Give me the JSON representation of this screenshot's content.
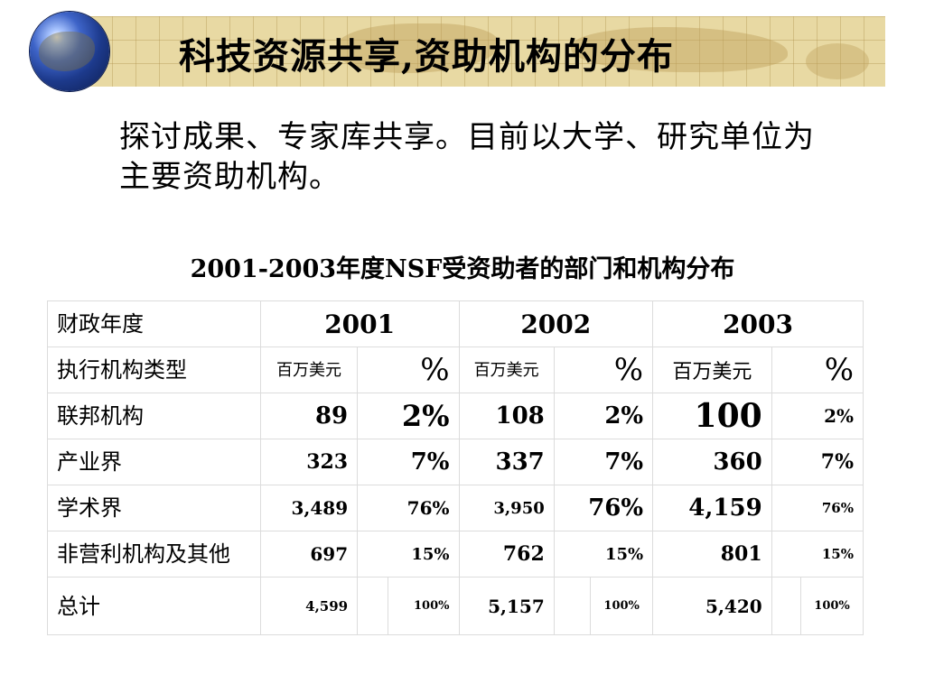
{
  "slide": {
    "title": "科技资源共享,资助机构的分布",
    "body": "探讨成果、专家库共享。目前以大学、研究单位为主要资助机构。",
    "table_title": "2001-2003年度NSF受资助者的部门和机构分布"
  },
  "table": {
    "header_row1": {
      "label": "财政年度",
      "years": [
        "2001",
        "2002",
        "2003"
      ]
    },
    "header_row2": {
      "label": "执行机构类型",
      "unit_amount": "百万美元",
      "unit_pct": "%"
    },
    "rows": [
      {
        "label": "联邦机构",
        "cells": [
          "89",
          "2%",
          "108",
          "2%",
          "100",
          "2%"
        ]
      },
      {
        "label": "产业界",
        "cells": [
          "323",
          "7%",
          "337",
          "7%",
          "360",
          "7%"
        ]
      },
      {
        "label": "学术界",
        "cells": [
          "3,489",
          "76%",
          "3,950",
          "76%",
          "4,159",
          "76%"
        ]
      },
      {
        "label": "非营利机构及其他",
        "cells": [
          "697",
          "15%",
          "762",
          "15%",
          "801",
          "15%"
        ]
      },
      {
        "label": "总计",
        "cells": [
          "4,599",
          "100%",
          "5,157",
          "100%",
          "5,420",
          "100%"
        ]
      }
    ]
  }
}
